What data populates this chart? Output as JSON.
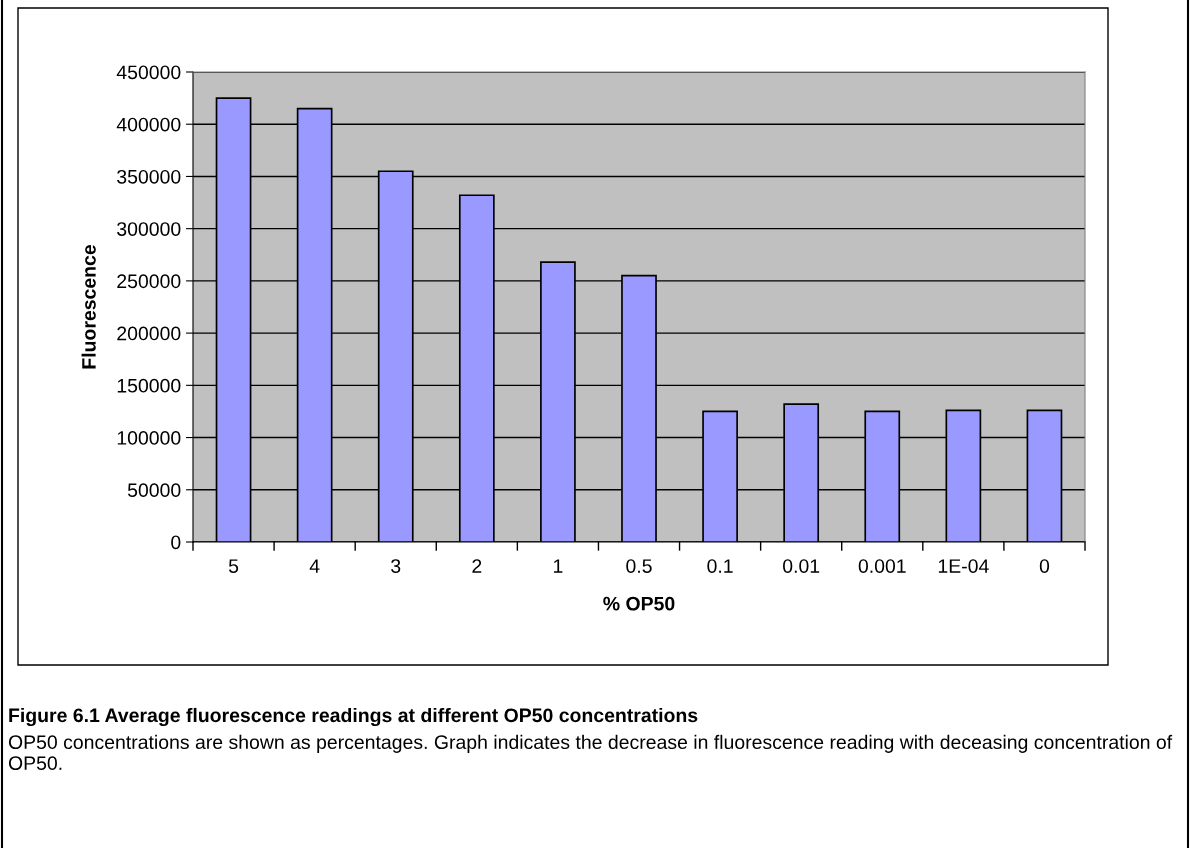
{
  "chart_data": {
    "type": "bar",
    "xlabel": "% OP50",
    "ylabel": "Fluorescence",
    "categories": [
      "5",
      "4",
      "3",
      "2",
      "1",
      "0.5",
      "0.1",
      "0.01",
      "0.001",
      "1E-04",
      "0"
    ],
    "values": [
      425000,
      415000,
      355000,
      332000,
      268000,
      255000,
      125000,
      132000,
      125000,
      126000,
      126000
    ],
    "color": "#9999ff",
    "ylim": [
      0,
      450000
    ],
    "yticks": [
      0,
      50000,
      100000,
      150000,
      200000,
      250000,
      300000,
      350000,
      400000,
      450000
    ],
    "grid": "y",
    "legend": false,
    "annotations": [
      "Figure 6.1 Average fluorescence readings at different OP50 concentrations",
      "OP50 concentrations are shown as percentages. Graph indicates the decrease in fluorescence reading with deceasing concentration of OP50."
    ]
  }
}
